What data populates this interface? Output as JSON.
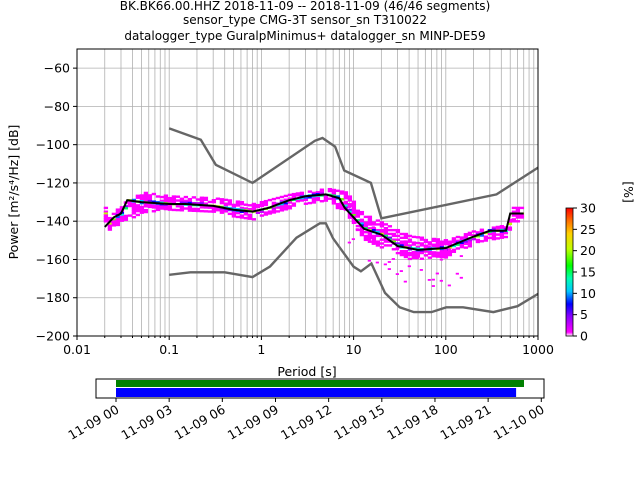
{
  "header": {
    "line1": "BK.BK66.00.HHZ   2018-11-09 -- 2018-11-09  (46/46 segments)",
    "line2": "sensor_type CMG-3T sensor_sn T310022",
    "line3": "datalogger_type GuralpMinimus+ datalogger_sn MINP-DE59"
  },
  "chart_data": {
    "type": "heatmap",
    "title": "",
    "xlabel": "Period [s]",
    "ylabel": "Power [m²/s⁴/Hz] [dB]",
    "x_scale": "log",
    "xlim": [
      0.01,
      1000
    ],
    "ylim": [
      -200,
      -50
    ],
    "x_ticks": [
      0.01,
      0.1,
      1,
      10,
      100,
      1000
    ],
    "x_tick_labels": [
      "0.01",
      "0.1",
      "1",
      "10",
      "100",
      "1000"
    ],
    "y_ticks": [
      -200,
      -180,
      -160,
      -140,
      -120,
      -100,
      -80,
      -60
    ],
    "y_tick_labels": [
      "−200",
      "−180",
      "−160",
      "−140",
      "−120",
      "−100",
      "−80",
      "−60"
    ],
    "grid": true,
    "colorbar": {
      "label": "[%]",
      "range": [
        0,
        30
      ],
      "ticks": [
        0,
        5,
        10,
        15,
        20,
        25,
        30
      ],
      "tick_labels": [
        "0",
        "5",
        "10",
        "15",
        "20",
        "25",
        "30"
      ]
    },
    "nhnm": [
      [
        0.1,
        -91.5
      ],
      [
        0.22,
        -97.4
      ],
      [
        0.32,
        -110.5
      ],
      [
        0.8,
        -120
      ],
      [
        3.8,
        -98
      ],
      [
        4.6,
        -96.5
      ],
      [
        6.3,
        -101
      ],
      [
        7.9,
        -113.5
      ],
      [
        15.4,
        -120
      ],
      [
        20,
        -138.5
      ],
      [
        354.8,
        -126
      ],
      [
        1000,
        -112
      ]
    ],
    "nlnm": [
      [
        0.1,
        -168
      ],
      [
        0.17,
        -166.7
      ],
      [
        0.4,
        -166.7
      ],
      [
        0.8,
        -169.2
      ],
      [
        1.24,
        -163.7
      ],
      [
        2.4,
        -148.6
      ],
      [
        4.3,
        -141.1
      ],
      [
        5,
        -141.1
      ],
      [
        6,
        -149
      ],
      [
        10,
        -163.8
      ],
      [
        12,
        -166.2
      ],
      [
        15.6,
        -162.1
      ],
      [
        21.9,
        -177.5
      ],
      [
        31.6,
        -185
      ],
      [
        45,
        -187.5
      ],
      [
        70,
        -187.5
      ],
      [
        101,
        -185
      ],
      [
        154,
        -185
      ],
      [
        328,
        -187.5
      ],
      [
        600,
        -184.4
      ],
      [
        1000,
        -178
      ]
    ],
    "mode_curve": [
      [
        0.02,
        -143
      ],
      [
        0.025,
        -138
      ],
      [
        0.03,
        -136
      ],
      [
        0.035,
        -129
      ],
      [
        0.05,
        -130
      ],
      [
        0.1,
        -131
      ],
      [
        0.15,
        -131
      ],
      [
        0.3,
        -132
      ],
      [
        0.5,
        -134
      ],
      [
        0.8,
        -135
      ],
      [
        1.2,
        -133
      ],
      [
        2,
        -129
      ],
      [
        3,
        -127
      ],
      [
        5,
        -126
      ],
      [
        7,
        -128
      ],
      [
        8,
        -133
      ],
      [
        10,
        -138
      ],
      [
        13,
        -144
      ],
      [
        20,
        -147
      ],
      [
        30,
        -153
      ],
      [
        50,
        -155
      ],
      [
        100,
        -154
      ],
      [
        200,
        -148
      ],
      [
        300,
        -145
      ],
      [
        450,
        -145
      ],
      [
        500,
        -136
      ],
      [
        700,
        -136
      ]
    ],
    "spread_low": [
      0.02,
      -146,
      0.03,
      -140,
      0.05,
      -136,
      0.1,
      -134,
      0.3,
      -136,
      0.8,
      -139,
      2,
      -133,
      5,
      -129,
      8,
      -137,
      12,
      -149,
      20,
      -154,
      40,
      -160,
      100,
      -159,
      200,
      -152,
      450,
      -148,
      500,
      -141,
      700,
      -140
    ],
    "spread_high": [
      0.02,
      -140,
      0.03,
      -131,
      0.05,
      -125,
      0.1,
      -127,
      0.3,
      -128,
      0.8,
      -131,
      2,
      -126,
      5,
      -123,
      8,
      -125,
      12,
      -136,
      20,
      -141,
      40,
      -148,
      100,
      -150,
      200,
      -145,
      450,
      -142,
      500,
      -133,
      700,
      -133
    ]
  },
  "timeline": {
    "tick_labels": [
      "11-09 00",
      "11-09 03",
      "11-09 06",
      "11-09 09",
      "11-09 12",
      "11-09 15",
      "11-09 18",
      "11-09 21",
      "11-10 00"
    ],
    "green_bar": {
      "start_hour": 0,
      "end_hour": 24.0
    },
    "blue_bar": {
      "start_hour": 0,
      "end_hour": 23.5
    },
    "colors": {
      "green": "#008000",
      "blue": "#0000ff"
    }
  }
}
